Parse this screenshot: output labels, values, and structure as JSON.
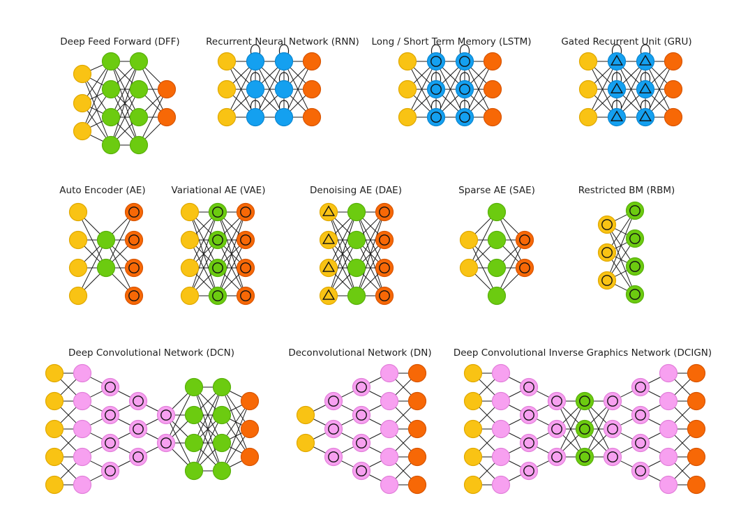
{
  "colors": {
    "input": "#F9C314",
    "input_stroke": "#E0A800",
    "hidden": "#6CCB10",
    "hidden_stroke": "#58B00A",
    "recurrent": "#14A0F0",
    "recurrent_stroke": "#0B86D0",
    "output": "#F76806",
    "output_stroke": "#D85400",
    "conv": "#F7A0F0",
    "conv_stroke": "#E27FDA",
    "edge": "#1a1a1a"
  },
  "networks": [
    {
      "id": "dff",
      "title": "Deep Feed Forward (DFF)"
    },
    {
      "id": "rnn",
      "title": "Recurrent Neural Network (RNN)"
    },
    {
      "id": "lstm",
      "title": "Long / Short Term Memory (LSTM)"
    },
    {
      "id": "gru",
      "title": "Gated Recurrent Unit (GRU)"
    },
    {
      "id": "ae",
      "title": "Auto Encoder (AE)"
    },
    {
      "id": "vae",
      "title": "Variational AE (VAE)"
    },
    {
      "id": "dae",
      "title": "Denoising AE (DAE)"
    },
    {
      "id": "sae",
      "title": "Sparse AE (SAE)"
    },
    {
      "id": "rbm",
      "title": "Restricted BM (RBM)"
    },
    {
      "id": "dcn",
      "title": "Deep Convolutional Network (DCN)"
    },
    {
      "id": "dn",
      "title": "Deconvolutional Network (DN)"
    },
    {
      "id": "dcign",
      "title": "Deep Convolutional Inverse Graphics Network (DCIGN)"
    }
  ],
  "cell_types": {
    "input": "input-cell",
    "noisy_input": "noisy-input-cell",
    "backfed_input": "backfed-input-cell",
    "hidden": "hidden-cell",
    "probabilistic_hidden": "probabilistic-hidden-cell",
    "recurrent": "recurrent-cell",
    "memory": "memory-cell",
    "gated_memory": "gated-memory-cell",
    "output": "output-cell",
    "match_output": "match-input-output-cell",
    "conv": "convolution-cell",
    "pool": "pool-cell"
  }
}
